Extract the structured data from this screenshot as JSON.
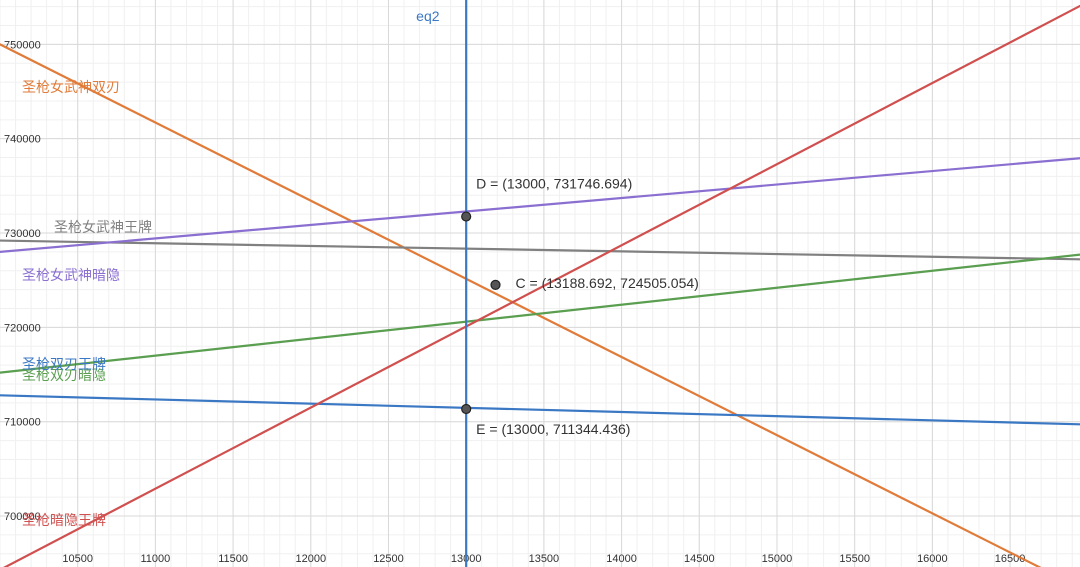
{
  "chart_data": {
    "type": "line",
    "title": "",
    "xlabel": "",
    "ylabel": "",
    "xlim": [
      10000,
      16950
    ],
    "ylim": [
      694600,
      754700
    ],
    "grid": true,
    "x_ticks": [
      10500,
      11000,
      11500,
      12000,
      12500,
      13000,
      13500,
      14000,
      14500,
      15000,
      15500,
      16000,
      16500
    ],
    "y_ticks": [
      700000,
      710000,
      720000,
      730000,
      740000,
      750000
    ],
    "x_tick_labels": [
      "10500",
      "11000",
      "11500",
      "12000",
      "12500",
      "13000",
      "13500",
      "14000",
      "14500",
      "15000",
      "15500",
      "16000",
      "16500"
    ],
    "y_tick_labels": [
      "700000",
      "710000",
      "720000",
      "730000",
      "740000",
      "750000"
    ],
    "series": [
      {
        "name": "圣枪女武神双刃",
        "color": "#e07b39",
        "x": [
          10000,
          17000
        ],
        "y": [
          750000,
          692000
        ]
      },
      {
        "name": "圣枪女武神王牌",
        "color": "#808080",
        "x": [
          10000,
          17000
        ],
        "y": [
          729200,
          727200
        ]
      },
      {
        "name": "圣枪女武神暗隐",
        "color": "#8a6fd1",
        "x": [
          10000,
          17000
        ],
        "y": [
          728000,
          738000
        ]
      },
      {
        "name": "圣枪双刃王牌",
        "color": "#3b78c4",
        "x": [
          10000,
          17000
        ],
        "y": [
          712800,
          709700
        ]
      },
      {
        "name": "圣枪双刃暗隐",
        "color": "#5a9e50",
        "x": [
          10000,
          17000
        ],
        "y": [
          715200,
          727800
        ]
      },
      {
        "name": "圣枪暗隐王牌",
        "color": "#d0504f",
        "x": [
          10000,
          17000
        ],
        "y": [
          694300,
          754500
        ]
      }
    ],
    "vertical_lines": [
      {
        "name": "eq2",
        "x": 13000,
        "color": "#3b78c4"
      }
    ],
    "points": [
      {
        "label": "D = (13000, 731746.694)",
        "x": 13000,
        "y": 731746.694
      },
      {
        "label": "C = (13188.692, 724505.054)",
        "x": 13188.692,
        "y": 724505.054
      },
      {
        "label": "E = (13000, 711344.436)",
        "x": 13000,
        "y": 711344.436
      }
    ]
  },
  "colors": {
    "background": "#ffffff",
    "grid_major": "#d9d9d9",
    "grid_minor": "#f0f0f0",
    "point_fill": "#555555",
    "point_stroke": "#222222"
  }
}
